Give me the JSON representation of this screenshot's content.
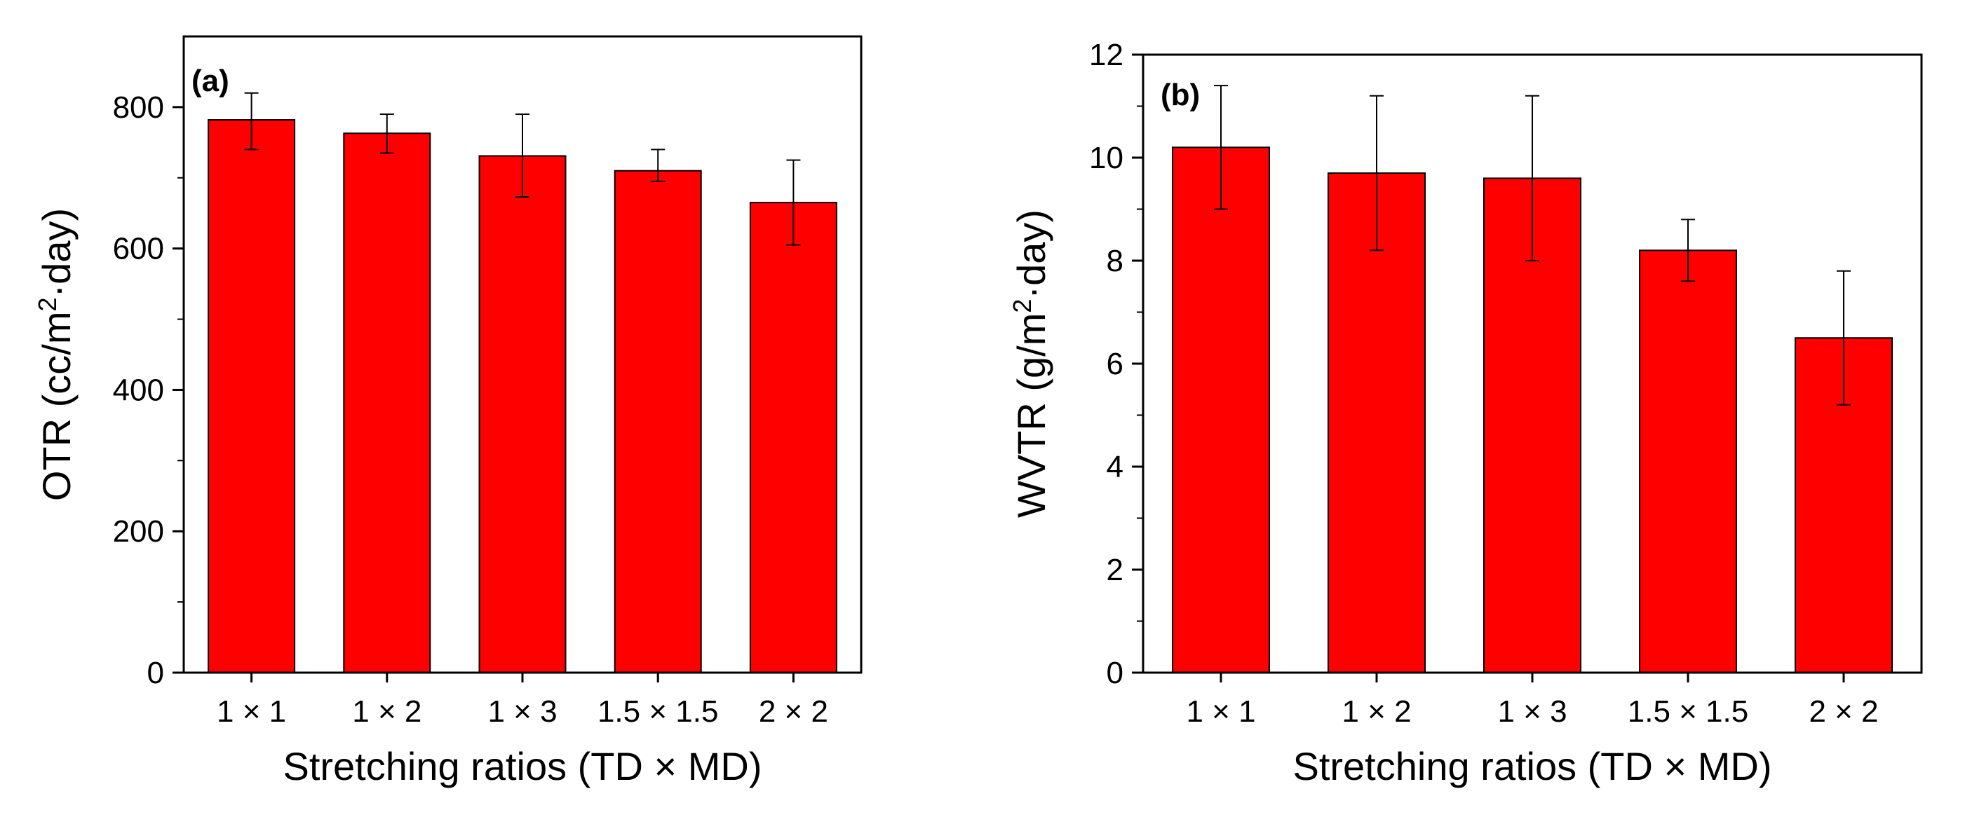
{
  "chart_data": [
    {
      "panel": "(a)",
      "type": "bar",
      "title": "",
      "xlabel": "Stretching ratios (TD × MD)",
      "ylabel": "OTR (cc/m²·day)",
      "ylabel_main": "OTR (cc/m",
      "ylabel_sup": "2",
      "ylabel_tail": "·day)",
      "categories": [
        "1 × 1",
        "1 × 2",
        "1 × 3",
        "1.5 × 1.5",
        "2 × 2"
      ],
      "values": [
        782,
        763,
        731,
        710,
        665
      ],
      "error_upper": [
        820,
        790,
        790,
        740,
        725
      ],
      "error_lower": [
        740,
        735,
        673,
        695,
        605
      ],
      "ylim": [
        0,
        900
      ],
      "yticks": [
        0,
        200,
        400,
        600,
        800
      ],
      "ytick_labels": [
        "0",
        "200",
        "400",
        "600",
        "800"
      ],
      "grid": false,
      "bar_color": "#ff0000"
    },
    {
      "panel": "(b)",
      "type": "bar",
      "title": "",
      "xlabel": "Stretching ratios (TD × MD)",
      "ylabel": "WVTR (g/m²·day)",
      "ylabel_main": "WVTR (g/m",
      "ylabel_sup": "2",
      "ylabel_tail": "·day)",
      "categories": [
        "1 × 1",
        "1 × 2",
        "1 × 3",
        "1.5 × 1.5",
        "2 × 2"
      ],
      "values": [
        10.2,
        9.7,
        9.6,
        8.2,
        6.5
      ],
      "error_upper": [
        11.4,
        11.2,
        11.2,
        8.8,
        7.8
      ],
      "error_lower": [
        9.0,
        8.2,
        8.0,
        7.6,
        5.2
      ],
      "ylim": [
        0,
        12
      ],
      "yticks": [
        0,
        2,
        4,
        6,
        8,
        10,
        12
      ],
      "ytick_labels": [
        "0",
        "2",
        "4",
        "6",
        "8",
        "10",
        "12"
      ],
      "grid": false,
      "bar_color": "#ff0000"
    }
  ]
}
